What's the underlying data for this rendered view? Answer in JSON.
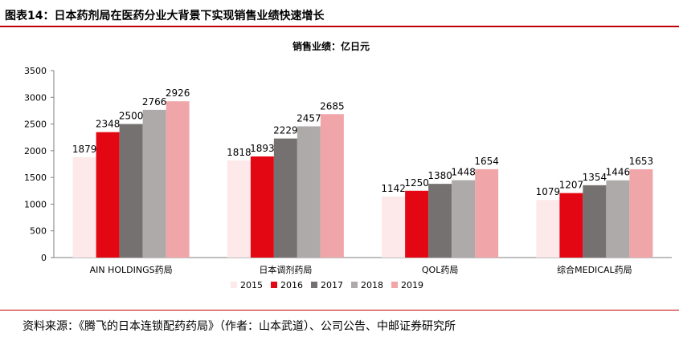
{
  "figure_title": "图表14：日本药剂局在医药分业大背景下实现销售业绩快速增长",
  "source_text": "资料来源：《腾飞的日本连锁配药药局》（作者：山本武道）、公司公告、中邮证券研究所",
  "chart_data": {
    "type": "bar",
    "title": "销售业绩：亿日元",
    "categories": [
      "AIN HOLDINGS药局",
      "日本调剂药局",
      "QOL药局",
      "综合MEDICAL药局"
    ],
    "series": [
      {
        "name": "2015",
        "color": "#fde9e9",
        "values": [
          1879,
          1818,
          1142,
          1079
        ]
      },
      {
        "name": "2016",
        "color": "#e30613",
        "values": [
          2348,
          1893,
          1250,
          1207
        ]
      },
      {
        "name": "2017",
        "color": "#767171",
        "values": [
          2500,
          2229,
          1380,
          1354
        ]
      },
      {
        "name": "2018",
        "color": "#aeaaaa",
        "values": [
          2766,
          2457,
          1448,
          1446
        ]
      },
      {
        "name": "2019",
        "color": "#f0a6a8",
        "values": [
          2926,
          2685,
          1654,
          1653
        ]
      }
    ],
    "ylim": [
      0,
      3500
    ],
    "yticks": [
      0,
      500,
      1000,
      1500,
      2000,
      2500,
      3000,
      3500
    ],
    "grid": false,
    "legend_position": "bottom"
  }
}
